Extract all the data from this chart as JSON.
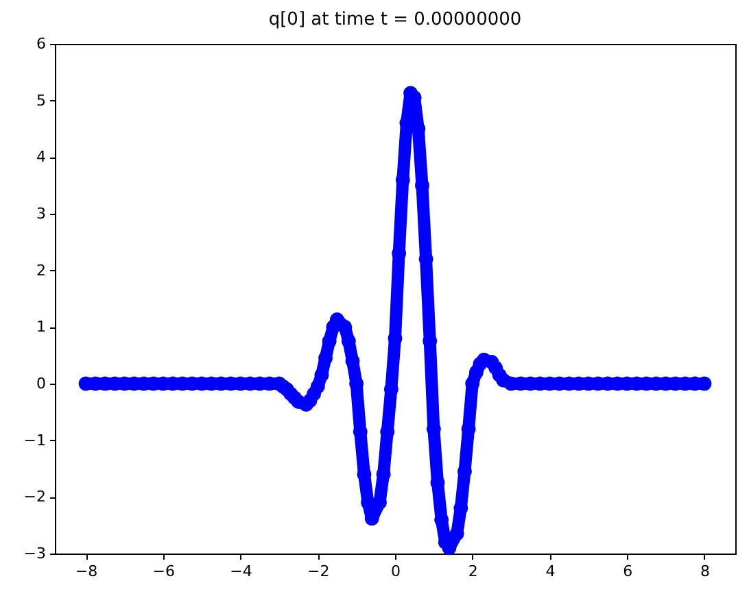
{
  "chart_data": {
    "type": "line",
    "title": "q[0] at time t =     0.00000000",
    "marker": "circle",
    "grid": false,
    "x": [
      -8,
      -7.75,
      -7.5,
      -7.25,
      -7,
      -6.75,
      -6.5,
      -6.25,
      -6,
      -5.75,
      -5.5,
      -5.25,
      -5,
      -4.75,
      -4.5,
      -4.25,
      -4,
      -3.75,
      -3.5,
      -3.25,
      -3,
      -2.9,
      -2.8,
      -2.7,
      -2.6,
      -2.5,
      -2.3,
      -2.2,
      -2.1,
      -2,
      -1.9,
      -1.8,
      -1.7,
      -1.6,
      -1.5,
      -1.3,
      -1.2,
      -1.1,
      -1,
      -0.9,
      -0.8,
      -0.7,
      -0.6,
      -0.4,
      -0.3,
      -0.2,
      -0.1,
      0,
      0.1,
      0.2,
      0.3,
      0.4,
      0.5,
      0.6,
      0.7,
      0.8,
      0.9,
      1,
      1.1,
      1.2,
      1.3,
      1.4,
      1.6,
      1.7,
      1.8,
      1.9,
      2,
      2.1,
      2.2,
      2.3,
      2.5,
      2.6,
      2.7,
      2.8,
      3,
      3.25,
      3.5,
      3.75,
      4,
      4.25,
      4.5,
      4.75,
      5,
      5.25,
      5.5,
      5.75,
      6,
      6.25,
      6.5,
      6.75,
      7,
      7.25,
      7.5,
      7.75,
      8
    ],
    "series": [
      {
        "color": "#0000ff",
        "values": [
          0,
          0,
          0,
          0,
          0,
          0,
          0,
          0,
          0,
          0,
          0,
          0,
          0,
          0,
          0,
          0,
          0,
          0,
          0,
          0,
          0,
          -0.05,
          -0.1,
          -0.18,
          -0.25,
          -0.32,
          -0.37,
          -0.3,
          -0.18,
          -0.05,
          0.15,
          0.45,
          0.75,
          1.0,
          1.13,
          1.0,
          0.75,
          0.4,
          0,
          -0.85,
          -1.6,
          -2.1,
          -2.38,
          -2.1,
          -1.6,
          -0.85,
          -0.1,
          0.8,
          2.3,
          3.6,
          4.6,
          5.13,
          5.05,
          4.5,
          3.5,
          2.2,
          0.75,
          -0.8,
          -1.75,
          -2.4,
          -2.8,
          -2.9,
          -2.65,
          -2.2,
          -1.55,
          -0.8,
          0,
          0.2,
          0.35,
          0.42,
          0.38,
          0.28,
          0.15,
          0.06,
          0,
          0,
          0,
          0,
          0,
          0,
          0,
          0,
          0,
          0,
          0,
          0,
          0,
          0,
          0,
          0,
          0,
          0,
          0,
          0,
          0
        ]
      }
    ],
    "xlim": [
      -8.8,
      8.8
    ],
    "xticks": [
      -8,
      -6,
      -4,
      -2,
      0,
      2,
      4,
      6,
      8
    ],
    "ylim": [
      -3,
      6
    ],
    "yticks": [
      -3,
      -2,
      -1,
      0,
      1,
      2,
      3,
      4,
      5,
      6
    ]
  }
}
